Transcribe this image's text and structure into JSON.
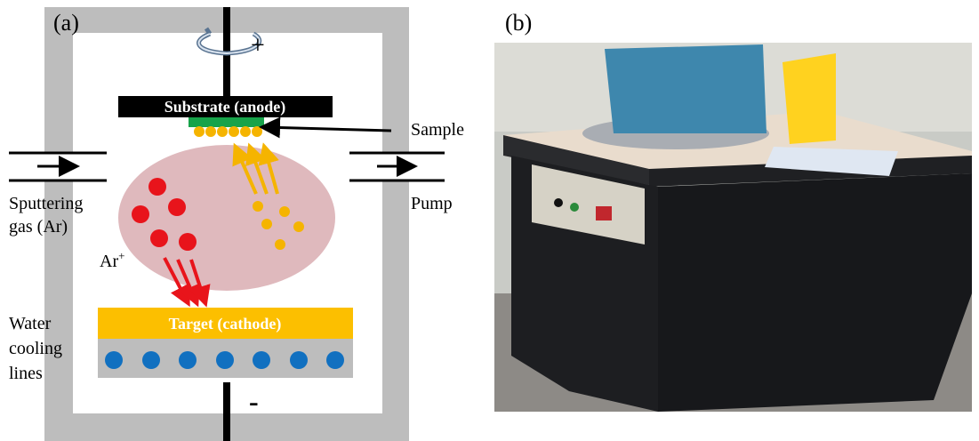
{
  "panel_a": {
    "label": "(a)",
    "anode_sign": "+",
    "cathode_sign": "-",
    "substrate": "Substrate (anode)",
    "sample": "Sample",
    "gas": [
      "Sputtering",
      "gas (Ar)"
    ],
    "pump": "Pump",
    "ion": {
      "text": "Ar",
      "sup": "+"
    },
    "target": "Target (cathode)",
    "cooling": [
      "Water",
      "cooling",
      "lines"
    ]
  },
  "panel_b": {
    "label": "(b)"
  }
}
